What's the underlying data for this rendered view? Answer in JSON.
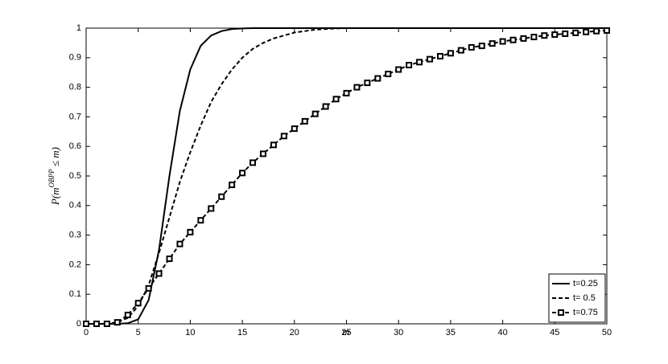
{
  "chart_data": {
    "type": "line",
    "xlabel": "m",
    "ylabel": [
      "P(m",
      "OBPP",
      " ≤ m)"
    ],
    "x": [
      0,
      1,
      2,
      3,
      4,
      5,
      6,
      7,
      8,
      9,
      10,
      11,
      12,
      13,
      14,
      15,
      16,
      17,
      18,
      19,
      20,
      21,
      22,
      23,
      24,
      25,
      26,
      27,
      28,
      29,
      30,
      31,
      32,
      33,
      34,
      35,
      36,
      37,
      38,
      39,
      40,
      41,
      42,
      43,
      44,
      45,
      46,
      47,
      48,
      49,
      50
    ],
    "series": [
      {
        "name": "t=0.25",
        "color": "#000000",
        "line_style": "solid",
        "marker": "none",
        "values": [
          0,
          0,
          0,
          0,
          0.002,
          0.015,
          0.08,
          0.25,
          0.5,
          0.72,
          0.86,
          0.94,
          0.975,
          0.99,
          0.997,
          0.999,
          1,
          1,
          1,
          1,
          1,
          1,
          1,
          1,
          1,
          1,
          1,
          1,
          1,
          1,
          1,
          1,
          1,
          1,
          1,
          1,
          1,
          1,
          1,
          1,
          1,
          1,
          1,
          1,
          1,
          1,
          1,
          1,
          1,
          1,
          1
        ]
      },
      {
        "name": "t= 0.5",
        "color": "#000000",
        "line_style": "dashed",
        "marker": "none",
        "values": [
          0,
          0,
          0,
          0.005,
          0.02,
          0.06,
          0.13,
          0.24,
          0.36,
          0.48,
          0.58,
          0.67,
          0.75,
          0.81,
          0.86,
          0.9,
          0.93,
          0.95,
          0.965,
          0.975,
          0.985,
          0.99,
          0.995,
          0.997,
          0.999,
          1,
          1,
          1,
          1,
          1,
          1,
          1,
          1,
          1,
          1,
          1,
          1,
          1,
          1,
          1,
          1,
          1,
          1,
          1,
          1,
          1,
          1,
          1,
          1,
          1,
          1
        ]
      },
      {
        "name": "t=0.75",
        "color": "#000000",
        "line_style": "dashed",
        "marker": "square",
        "values": [
          0,
          0,
          0,
          0.005,
          0.03,
          0.07,
          0.12,
          0.17,
          0.22,
          0.27,
          0.31,
          0.35,
          0.39,
          0.43,
          0.47,
          0.51,
          0.545,
          0.575,
          0.605,
          0.635,
          0.66,
          0.685,
          0.71,
          0.735,
          0.76,
          0.78,
          0.8,
          0.815,
          0.83,
          0.845,
          0.86,
          0.875,
          0.885,
          0.895,
          0.905,
          0.915,
          0.925,
          0.935,
          0.94,
          0.948,
          0.955,
          0.96,
          0.965,
          0.97,
          0.975,
          0.978,
          0.981,
          0.984,
          0.987,
          0.99,
          0.992
        ]
      }
    ],
    "xlim": [
      0,
      50
    ],
    "xticks": [
      0,
      5,
      10,
      15,
      20,
      25,
      30,
      35,
      40,
      45,
      50
    ],
    "ylim": [
      0,
      1
    ],
    "yticks": [
      0,
      0.1,
      0.2,
      0.3,
      0.4,
      0.5,
      0.6,
      0.7,
      0.8,
      0.9,
      1
    ],
    "grid": false,
    "legend": "lower right"
  }
}
